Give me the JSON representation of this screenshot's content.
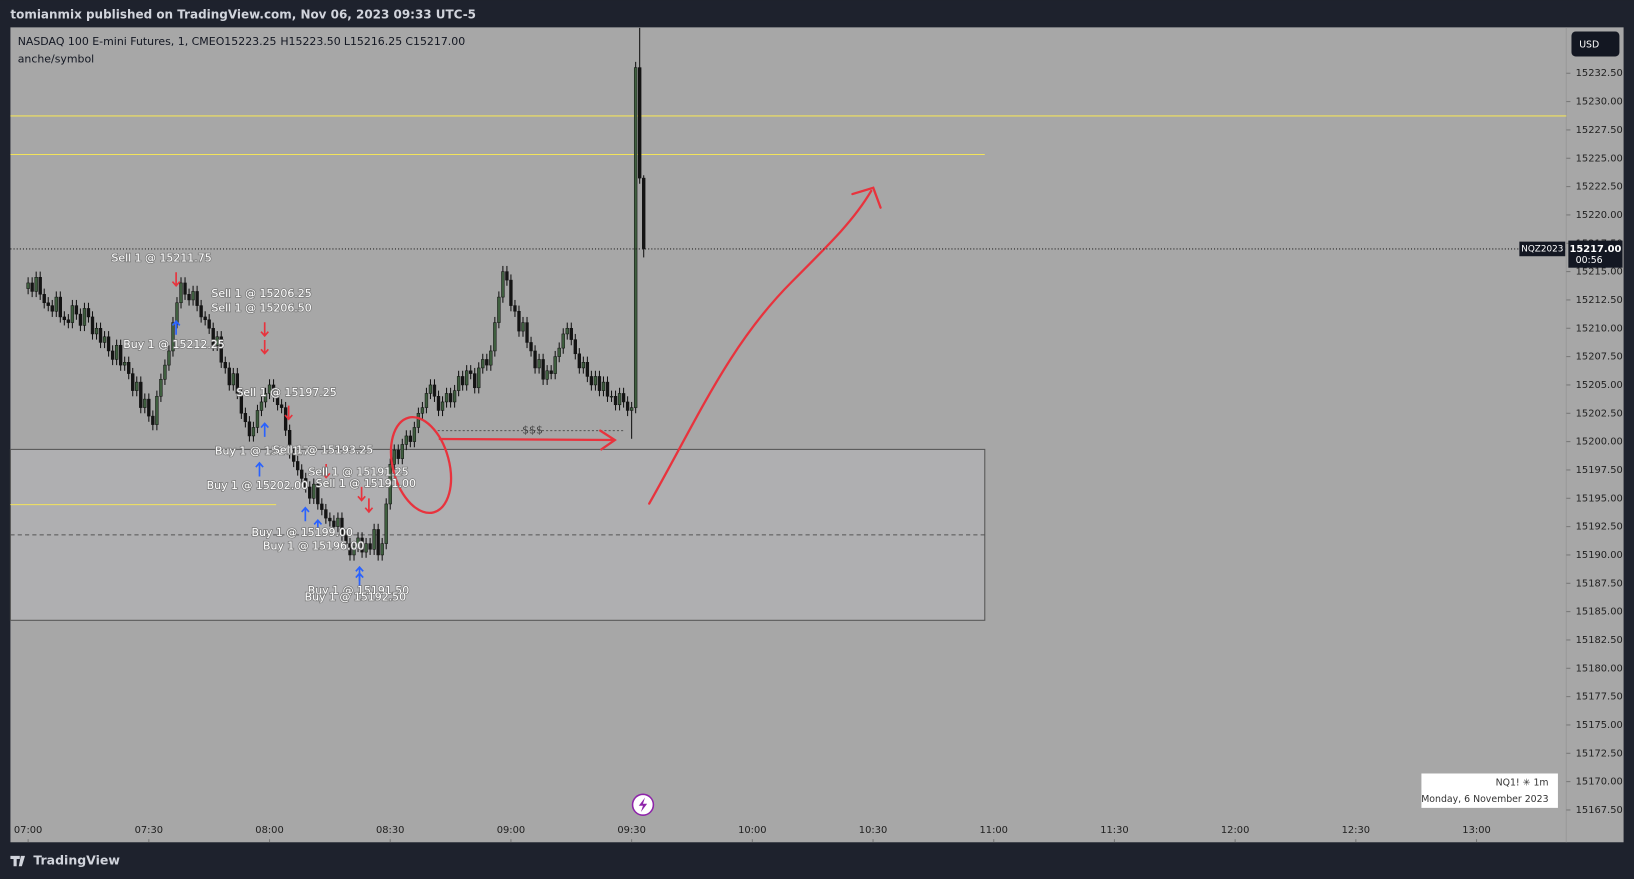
{
  "header": {
    "publisher": "tomianmix published on TradingView.com, Nov 06, 2023 09:33 UTC-5",
    "brand": "TradingView"
  },
  "chart_data": {
    "type": "candlestick",
    "symbol": "NASDAQ 100 E-mini Futures, 1, CME",
    "ohlc_header": [
      "O15223.25",
      "H15223.50",
      "L15216.25",
      "C15217.00"
    ],
    "subtitle": "anche/symbol",
    "currency": "USD",
    "contract": "NQZ2023",
    "last_price_label": "15217.00",
    "countdown": "00:56",
    "annotation": "$$$",
    "info_symbol": "NQ1! ✳ 1m",
    "info_date": "Monday, 6 November 2023",
    "up_color": "#3f5f3f",
    "down_color": "#141414",
    "trades": [
      "Sell 1 @ 15211.75",
      "Sell 1 @ 15206.25",
      "Sell 1 @ 15206.50",
      "Buy 1 @ 15212.25",
      "Sell 1 @ 15197.25",
      "Buy 1 @ 15201.75",
      "Sell 1 @ 15193.25",
      "Buy 1 @ 15202.00",
      "Sell 1 @ 15191.25",
      "Sell 1 @ 15191.00",
      "Buy 1 @ 15199.00",
      "Buy 1 @ 15196.00",
      "Buy 1 @ 15191.50",
      "Buy 1 @ 15192.50"
    ],
    "x": [
      0,
      1,
      2,
      3,
      4,
      5,
      6,
      7,
      8,
      9,
      10,
      11,
      12,
      13,
      14,
      15,
      16,
      17,
      18,
      19,
      20,
      21,
      22,
      23,
      24,
      25,
      26,
      27,
      28,
      29,
      30,
      31,
      32,
      33,
      34,
      35,
      36,
      37,
      38,
      39,
      40,
      41,
      42,
      43,
      44,
      45,
      46,
      47,
      48,
      49,
      50,
      51,
      52,
      53,
      54,
      55,
      56,
      57,
      58,
      59,
      60,
      61,
      62,
      63,
      64,
      65,
      66,
      67,
      68,
      69,
      70,
      71,
      72,
      73,
      74,
      75,
      76,
      77,
      78,
      79,
      80,
      81,
      82,
      83,
      84,
      85,
      86,
      87,
      88,
      89,
      90,
      91,
      92,
      93,
      94,
      95,
      96,
      97,
      98,
      99,
      100,
      101,
      102,
      103,
      104,
      105,
      106,
      107,
      108,
      109,
      110,
      111,
      112,
      113,
      114,
      115,
      116,
      117,
      118,
      119,
      120,
      121,
      122,
      123,
      124,
      125,
      126,
      127,
      128,
      129,
      130,
      131,
      132,
      133,
      134,
      135,
      136,
      137,
      138,
      139,
      140,
      141,
      142,
      143,
      144,
      145,
      146,
      147,
      148,
      149,
      150,
      151,
      152,
      153
    ],
    "open": [
      15213.5,
      15214,
      15213.25,
      15214.5,
      15213,
      15212.25,
      15212,
      15211.5,
      15212.75,
      15211,
      15210.75,
      15210.5,
      15212,
      15211.25,
      15210.25,
      15211.75,
      15211,
      15209.5,
      15210,
      15208.75,
      15209.25,
      15208,
      15207.25,
      15208.5,
      15206.75,
      15207,
      15206,
      15204.5,
      15205.25,
      15203,
      15203.75,
      15202.25,
      15201.5,
      15204,
      15205.5,
      15206.75,
      15208,
      15210.5,
      15212.25,
      15214,
      15213,
      15212.5,
      15213.25,
      15212,
      15211,
      15210.75,
      15210,
      15208.5,
      15209.25,
      15207,
      15206.5,
      15205,
      15206,
      15204.25,
      15202.5,
      15201.75,
      15200.5,
      15201.25,
      15202.75,
      15203.5,
      15204.25,
      15205,
      15204,
      15203.25,
      15203,
      15201,
      15199,
      15198.25,
      15197.5,
      15196.75,
      15196,
      15195,
      15196.25,
      15194.5,
      15194,
      15193.25,
      15193,
      15192.5,
      15193.25,
      15191.75,
      15191,
      15190,
      15190.75,
      15191.5,
      15190.25,
      15191,
      15190.5,
      15192.25,
      15190,
      15191,
      15194.5,
      15198,
      15199.25,
      15198.5,
      15199.75,
      15200.5,
      15200,
      15201.25,
      15202.5,
      15203,
      15204.25,
      15205,
      15204,
      15202.75,
      15203.5,
      15204.25,
      15203.5,
      15204.5,
      15205.75,
      15205,
      15206.25,
      15206,
      15204.75,
      15206.5,
      15207.25,
      15206.75,
      15208,
      15210.5,
      15212.75,
      15215,
      15214.25,
      15212,
      15211.5,
      15209.75,
      15210.5,
      15208.75,
      15208,
      15206.5,
      15207.25,
      15205.5,
      15206.25,
      15206,
      15207.5,
      15208.25,
      15209.5,
      15210,
      15209,
      15207.75,
      15206.5,
      15207,
      15205.75,
      15205,
      15205.75,
      15204.5,
      15205.25,
      15204,
      15204,
      15203.25,
      15204.25,
      15203.5,
      15202.75,
      15203,
      15233,
      15223.25
    ],
    "high": [
      15214.5,
      15214.5,
      15215,
      15215,
      15213.5,
      15212.75,
      15212.5,
      15213.25,
      15213.25,
      15211.5,
      15211.25,
      15212.5,
      15212.5,
      15211.75,
      15212.25,
      15212.25,
      15211.5,
      15210.5,
      15210.5,
      15209.75,
      15209.75,
      15208.5,
      15209,
      15209,
      15207.5,
      15207.5,
      15206.5,
      15205.75,
      15205.75,
      15204.25,
      15204.25,
      15202.75,
      15204.5,
      15206,
      15207.25,
      15208.5,
      15211,
      15212.75,
      15214.5,
      15214.5,
      15213.5,
      15213.75,
      15213.75,
      15212.5,
      15211.5,
      15211.25,
      15210.5,
      15209.75,
      15209.75,
      15207.5,
      15207,
      15206.5,
      15206.5,
      15204.75,
      15203,
      15202.25,
      15201.75,
      15203.25,
      15204,
      15204.75,
      15205.5,
      15205.5,
      15204.5,
      15203.75,
      15203.5,
      15201.5,
      15199.5,
      15198.75,
      15198,
      15197.25,
      15196.5,
      15196.75,
      15196.75,
      15195,
      15194.5,
      15193.75,
      15193.5,
      15193.75,
      15193.75,
      15192.25,
      15191.5,
      15191.25,
      15192,
      15192,
      15191.5,
      15191.5,
      15192.75,
      15192.75,
      15191.5,
      15195,
      15198.5,
      15199.75,
      15199.75,
      15200.25,
      15201,
      15201,
      15201.75,
      15203,
      15203.5,
      15204.75,
      15205.5,
      15205.5,
      15204.5,
      15204,
      15204.75,
      15204.75,
      15205,
      15206.25,
      15206.25,
      15206.75,
      15206.75,
      15206.5,
      15207,
      15207.75,
      15207.75,
      15208.5,
      15211,
      15213.25,
      15215.5,
      15215.5,
      15214.75,
      15212.5,
      15212,
      15211,
      15211,
      15209.25,
      15208.5,
      15207.75,
      15207.75,
      15206.75,
      15206.75,
      15208,
      15208.75,
      15210,
      15210.5,
      15210.5,
      15209.5,
      15208.25,
      15207.5,
      15207.5,
      15206.25,
      15206.25,
      15206.25,
      15205.75,
      15205.75,
      15204.5,
      15204.5,
      15204.75,
      15204.75,
      15204,
      15203.5,
      15233.5,
      15236.5,
      15223.5
    ],
    "low": [
      15213,
      15212.75,
      15212.75,
      15212.5,
      15211.75,
      15211.5,
      15211,
      15211,
      15210.5,
      15210.25,
      15210,
      15210,
      15210.75,
      15209.75,
      15209.75,
      15210.5,
      15209,
      15209,
      15208.25,
      15208.25,
      15207.5,
      15206.75,
      15206.75,
      15206.25,
      15206.25,
      15205.5,
      15204,
      15204,
      15202.5,
      15202.5,
      15201.75,
      15201,
      15201,
      15203.5,
      15205,
      15206.25,
      15207.5,
      15210,
      15211.75,
      15212.5,
      15212,
      15212,
      15211.5,
      15210.5,
      15210.25,
      15209.5,
      15208,
      15208,
      15206.5,
      15206,
      15204.5,
      15204.5,
      15203.75,
      15202,
      15201.25,
      15200,
      15200,
      15200.75,
      15202.25,
      15203,
      15203.75,
      15203.5,
      15202.75,
      15202.5,
      15200.5,
      15198.5,
      15197.75,
      15197,
      15196.25,
      15195.5,
      15194.5,
      15194.5,
      15194,
      15193.5,
      15192.75,
      15192.5,
      15192,
      15192,
      15191.25,
      15190.5,
      15189.5,
      15189.5,
      15190.25,
      15189.75,
      15189.75,
      15190,
      15190,
      15189.5,
      15189.5,
      15190.5,
      15194,
      15197.5,
      15198,
      15198,
      15199.25,
      15199.5,
      15199.5,
      15200.75,
      15202,
      15202.5,
      15203.75,
      15203.5,
      15202.25,
      15202.25,
      15203,
      15203,
      15203,
      15204,
      15204.5,
      15204.5,
      15205.5,
      15204.25,
      15204.25,
      15206,
      15206.25,
      15206.25,
      15207.5,
      15210,
      15212.25,
      15213.75,
      15211.5,
      15211,
      15209.25,
      15209.25,
      15208.25,
      15207.5,
      15206,
      15206,
      15205,
      15205,
      15205.5,
      15205.5,
      15207,
      15207.75,
      15209,
      15208.5,
      15207.25,
      15206,
      15206,
      15205.25,
      15204.5,
      15204.5,
      15204,
      15204,
      15203.5,
      15203.5,
      15202.75,
      15202.75,
      15203,
      15202.25,
      15200.25,
      15202.5,
      15222.75,
      15216.25
    ],
    "close": [
      15214,
      15213.25,
      15214.5,
      15213,
      15212.25,
      15212,
      15211.5,
      15212.75,
      15211,
      15210.75,
      15210.5,
      15212,
      15211.25,
      15210.25,
      15211.75,
      15211,
      15209.5,
      15210,
      15208.75,
      15209.25,
      15208,
      15207.25,
      15208.5,
      15206.75,
      15207,
      15206,
      15204.5,
      15205.25,
      15203,
      15203.75,
      15202.25,
      15201.5,
      15204,
      15205.5,
      15206.75,
      15208,
      15210.5,
      15212.25,
      15214,
      15213,
      15212.5,
      15213.25,
      15212,
      15211,
      15210.75,
      15210,
      15208.5,
      15209.25,
      15207,
      15206.5,
      15205,
      15206,
      15204.25,
      15202.5,
      15201.75,
      15200.5,
      15201.25,
      15202.75,
      15203.5,
      15204.25,
      15205,
      15204,
      15203.25,
      15203,
      15201,
      15199,
      15198.25,
      15197.5,
      15196.75,
      15196,
      15195,
      15196.25,
      15194.5,
      15194,
      15193.25,
      15193,
      15192.5,
      15193.25,
      15191.75,
      15191,
      15190,
      15190.75,
      15191.5,
      15190.25,
      15191,
      15190.5,
      15192.25,
      15190,
      15191,
      15194.5,
      15198,
      15199.25,
      15198.5,
      15199.75,
      15200.5,
      15200,
      15201.25,
      15202.5,
      15203,
      15204.25,
      15205,
      15204,
      15202.75,
      15203.5,
      15204.25,
      15203.5,
      15204.5,
      15205.75,
      15205,
      15206.25,
      15206,
      15204.75,
      15206.5,
      15207.25,
      15206.75,
      15208,
      15210.5,
      15212.75,
      15215,
      15214.25,
      15212,
      15211.5,
      15209.75,
      15210.5,
      15208.75,
      15208,
      15206.5,
      15207.25,
      15205.5,
      15206.25,
      15206,
      15207.5,
      15208.25,
      15209.5,
      15210,
      15209,
      15207.75,
      15206.5,
      15207,
      15205.75,
      15205,
      15205.75,
      15204.5,
      15205.25,
      15204,
      15204,
      15203.25,
      15204.25,
      15203.5,
      15202.75,
      15203,
      15233,
      15223.25,
      15217
    ],
    "xlim": [
      -4.4,
      382.3
    ],
    "xticks": [
      {
        "value": 0,
        "label": "07:00"
      },
      {
        "value": 30,
        "label": "07:30"
      },
      {
        "value": 60,
        "label": "08:00"
      },
      {
        "value": 90,
        "label": "08:30"
      },
      {
        "value": 120,
        "label": "09:00"
      },
      {
        "value": 150,
        "label": "09:30"
      },
      {
        "value": 180,
        "label": "10:00"
      },
      {
        "value": 210,
        "label": "10:30"
      },
      {
        "value": 240,
        "label": "11:00"
      },
      {
        "value": 270,
        "label": "11:30"
      },
      {
        "value": 300,
        "label": "12:00"
      },
      {
        "value": 330,
        "label": "12:30"
      },
      {
        "value": 360,
        "label": "13:00"
      }
    ],
    "ylim": [
      15164.65,
      15236.55
    ],
    "yticks": [
      {
        "value": 15167.5,
        "label": "15167.50"
      },
      {
        "value": 15170,
        "label": "15170.00"
      },
      {
        "value": 15172.5,
        "label": "15172.50"
      },
      {
        "value": 15175,
        "label": "15175.00"
      },
      {
        "value": 15177.5,
        "label": "15177.50"
      },
      {
        "value": 15180,
        "label": "15180.00"
      },
      {
        "value": 15182.5,
        "label": "15182.50"
      },
      {
        "value": 15185,
        "label": "15185.00"
      },
      {
        "value": 15187.5,
        "label": "15187.50"
      },
      {
        "value": 15190,
        "label": "15190.00"
      },
      {
        "value": 15192.5,
        "label": "15192.50"
      },
      {
        "value": 15195,
        "label": "15195.00"
      },
      {
        "value": 15197.5,
        "label": "15197.50"
      },
      {
        "value": 15200,
        "label": "15200.00"
      },
      {
        "value": 15202.5,
        "label": "15202.50"
      },
      {
        "value": 15205,
        "label": "15205.00"
      },
      {
        "value": 15207.5,
        "label": "15207.50"
      },
      {
        "value": 15210,
        "label": "15210.00"
      },
      {
        "value": 15212.5,
        "label": "15212.50"
      },
      {
        "value": 15215,
        "label": "15215.00"
      },
      {
        "value": 15217.5,
        "label": "15217.50"
      },
      {
        "value": 15220,
        "label": "15220.00"
      },
      {
        "value": 15222.5,
        "label": "15222.50"
      },
      {
        "value": 15225,
        "label": "15225.00"
      },
      {
        "value": 15227.5,
        "label": "15227.50"
      },
      {
        "value": 15230,
        "label": "15230.00"
      },
      {
        "value": 15232.5,
        "label": "15232.50"
      }
    ],
    "grid": false
  }
}
